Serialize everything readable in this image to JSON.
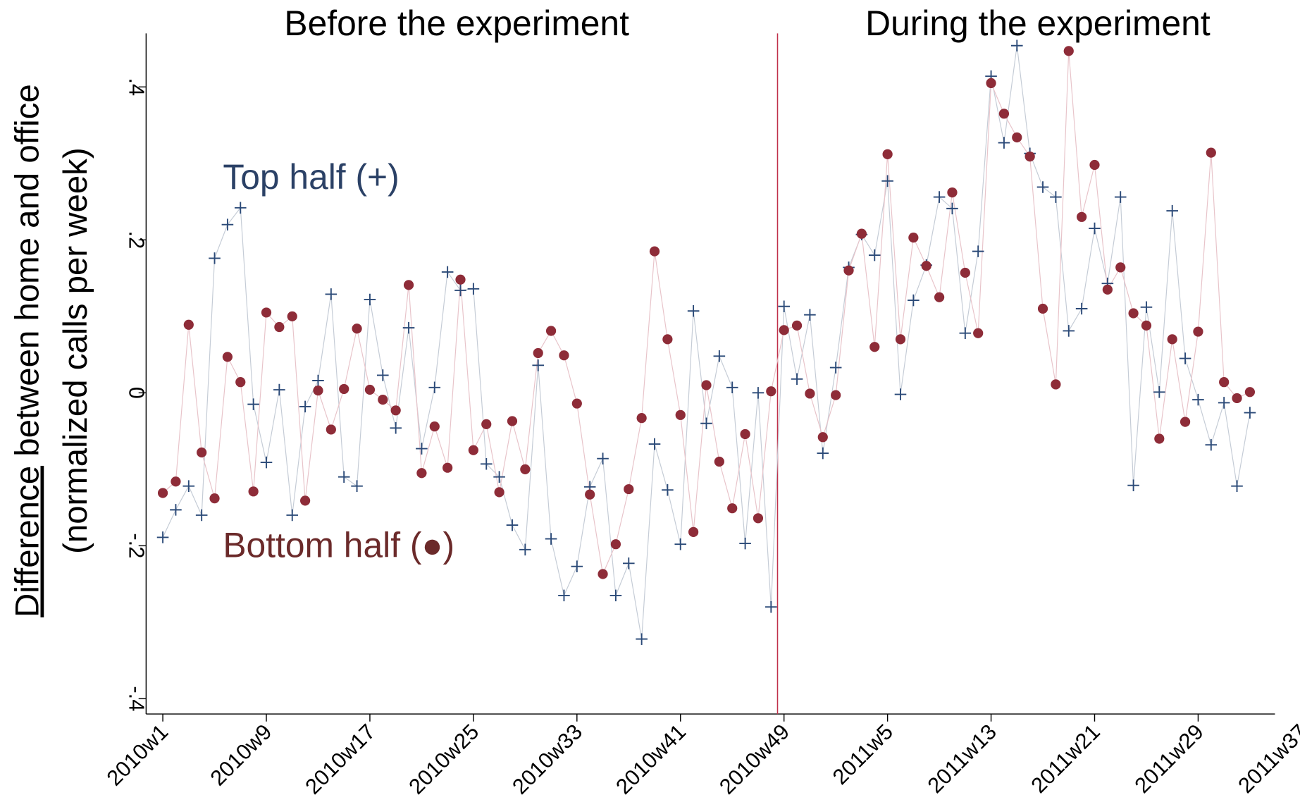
{
  "chart_data": {
    "type": "line",
    "annotations": {
      "before": "Before the experiment",
      "during": "During the experiment",
      "top": "Top half (+)",
      "bottom": "Bottom half (●)"
    },
    "y_label": [
      "Difference",
      "between home and office",
      "(normalized calls per week)"
    ],
    "categories": [
      "2010w1",
      null,
      null,
      null,
      null,
      null,
      null,
      null,
      "2010w9",
      null,
      null,
      null,
      null,
      null,
      null,
      null,
      "2010w17",
      null,
      null,
      null,
      null,
      null,
      null,
      null,
      "2010w25",
      null,
      null,
      null,
      null,
      null,
      null,
      null,
      "2010w33",
      null,
      null,
      null,
      null,
      null,
      null,
      null,
      "2010w41",
      null,
      null,
      null,
      null,
      null,
      null,
      null,
      "2010w49",
      null,
      null,
      null,
      null,
      null,
      null,
      null,
      "2011w5",
      null,
      null,
      null,
      null,
      null,
      null,
      null,
      "2011w13",
      null,
      null,
      null,
      null,
      null,
      null,
      null,
      "2011w21",
      null,
      null,
      null,
      null,
      null,
      null,
      null,
      "2011w29",
      null,
      null,
      null,
      null,
      null,
      null,
      null,
      "2011w37"
    ],
    "vline": 47.5,
    "ylim": [
      -0.42,
      0.47
    ],
    "yticks": [
      {
        "value": -0.4,
        "label": "-.4"
      },
      {
        "value": -0.2,
        "label": "-.2"
      },
      0,
      {
        "value": 0.2,
        "label": ".2"
      },
      {
        "value": 0.4,
        "label": ".4"
      }
    ],
    "series": [
      {
        "name": "Top half",
        "marker": "plus",
        "color": "#2b4a78",
        "line_color": "#c5ccd6",
        "values": [
          -0.189,
          -0.153,
          -0.122,
          -0.16,
          0.176,
          0.22,
          0.242,
          -0.015,
          -0.091,
          0.004,
          -0.16,
          -0.018,
          0.016,
          0.129,
          -0.11,
          -0.122,
          0.122,
          0.023,
          -0.046,
          0.085,
          -0.073,
          0.007,
          0.158,
          0.134,
          0.136,
          -0.093,
          -0.11,
          -0.173,
          -0.205,
          0.036,
          -0.191,
          -0.265,
          -0.227,
          -0.123,
          -0.086,
          -0.265,
          -0.223,
          -0.322,
          -0.067,
          -0.127,
          -0.198,
          0.107,
          -0.04,
          0.048,
          0.007,
          -0.197,
          0.0,
          -0.28,
          0.113,
          0.018,
          0.102,
          -0.079,
          0.033,
          0.164,
          0.207,
          0.18,
          0.277,
          -0.002,
          0.121,
          0.167,
          0.256,
          0.241,
          0.078,
          0.185,
          0.414,
          0.327,
          0.454,
          0.313,
          0.269,
          0.256,
          0.081,
          0.11,
          0.215,
          0.143,
          0.256,
          -0.121,
          0.112,
          0.001,
          0.238,
          0.045,
          -0.009,
          -0.068,
          -0.013,
          -0.122,
          -0.026,
          null,
          null,
          null,
          null
        ]
      },
      {
        "name": "Bottom half",
        "marker": "circle",
        "color": "#8e2c38",
        "line_color": "#e8c4ca",
        "values": [
          -0.131,
          -0.116,
          0.089,
          -0.078,
          -0.138,
          0.047,
          0.014,
          -0.129,
          0.105,
          0.086,
          0.1,
          -0.141,
          0.003,
          -0.048,
          0.005,
          0.084,
          0.004,
          -0.009,
          -0.023,
          0.141,
          -0.105,
          -0.044,
          -0.098,
          0.148,
          -0.075,
          -0.041,
          -0.13,
          -0.037,
          -0.1,
          0.052,
          0.081,
          0.049,
          -0.014,
          -0.133,
          -0.237,
          -0.198,
          -0.126,
          -0.033,
          0.185,
          0.07,
          -0.029,
          -0.182,
          0.01,
          -0.09,
          -0.151,
          -0.054,
          -0.164,
          0.002,
          0.082,
          0.088,
          -0.001,
          -0.058,
          -0.003,
          0.16,
          0.208,
          0.06,
          0.312,
          0.07,
          0.203,
          0.166,
          0.125,
          0.262,
          0.157,
          0.078,
          0.405,
          0.365,
          0.334,
          0.309,
          0.11,
          0.011,
          0.447,
          0.23,
          0.298,
          0.135,
          0.164,
          0.104,
          0.088,
          -0.06,
          0.07,
          -0.038,
          0.08,
          0.314,
          0.014,
          -0.007,
          0.001,
          null,
          null,
          null,
          null
        ]
      }
    ]
  }
}
